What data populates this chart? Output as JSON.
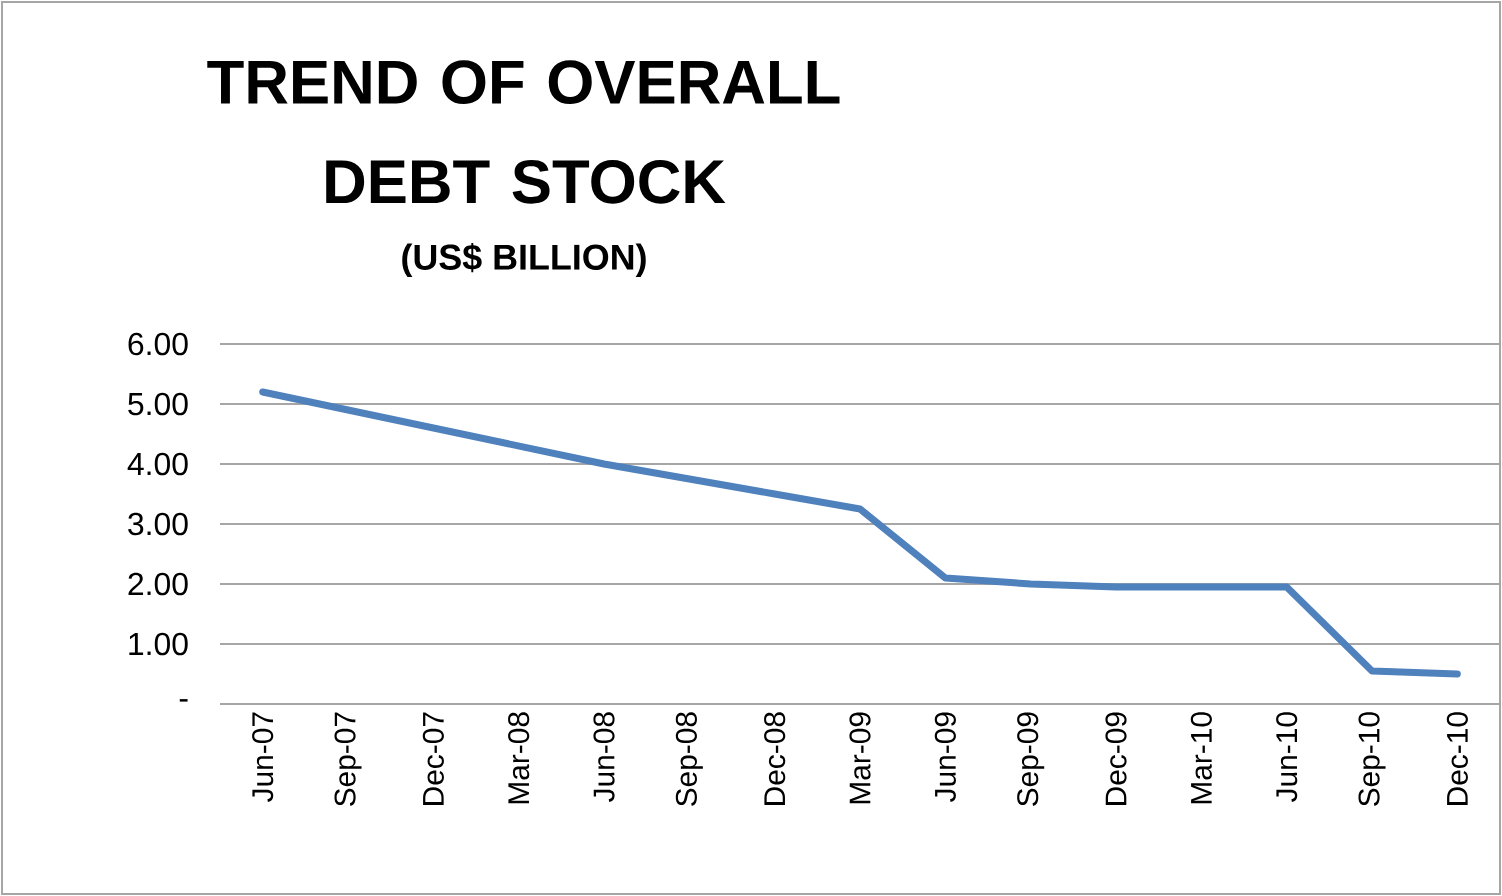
{
  "chart_data": {
    "type": "line",
    "title": "TREND OF OVERALL DEBT STOCK",
    "subtitle": "(US$ BILLION)",
    "categories": [
      "Jun-07",
      "Sep-07",
      "Dec-07",
      "Mar-08",
      "Jun-08",
      "Sep-08",
      "Dec-08",
      "Mar-09",
      "Jun-09",
      "Sep-09",
      "Dec-09",
      "Mar-10",
      "Jun-10",
      "Sep-10",
      "Dec-10"
    ],
    "series": [
      {
        "color": "#4f81bd",
        "values": [
          5.2,
          4.9,
          4.6,
          4.3,
          4.0,
          3.75,
          3.5,
          3.25,
          2.1,
          2.0,
          1.95,
          1.95,
          1.95,
          0.55,
          0.5
        ]
      }
    ],
    "ylim": [
      0,
      6
    ],
    "yticks": [
      {
        "value": 0,
        "label": "-"
      },
      {
        "value": 1,
        "label": "1.00"
      },
      {
        "value": 2,
        "label": "2.00"
      },
      {
        "value": 3,
        "label": "3.00"
      },
      {
        "value": 4,
        "label": "4.00"
      },
      {
        "value": 5,
        "label": "5.00"
      },
      {
        "value": 6,
        "label": "6.00"
      }
    ],
    "grid": "y",
    "marker": "none",
    "line_style": "solid"
  }
}
